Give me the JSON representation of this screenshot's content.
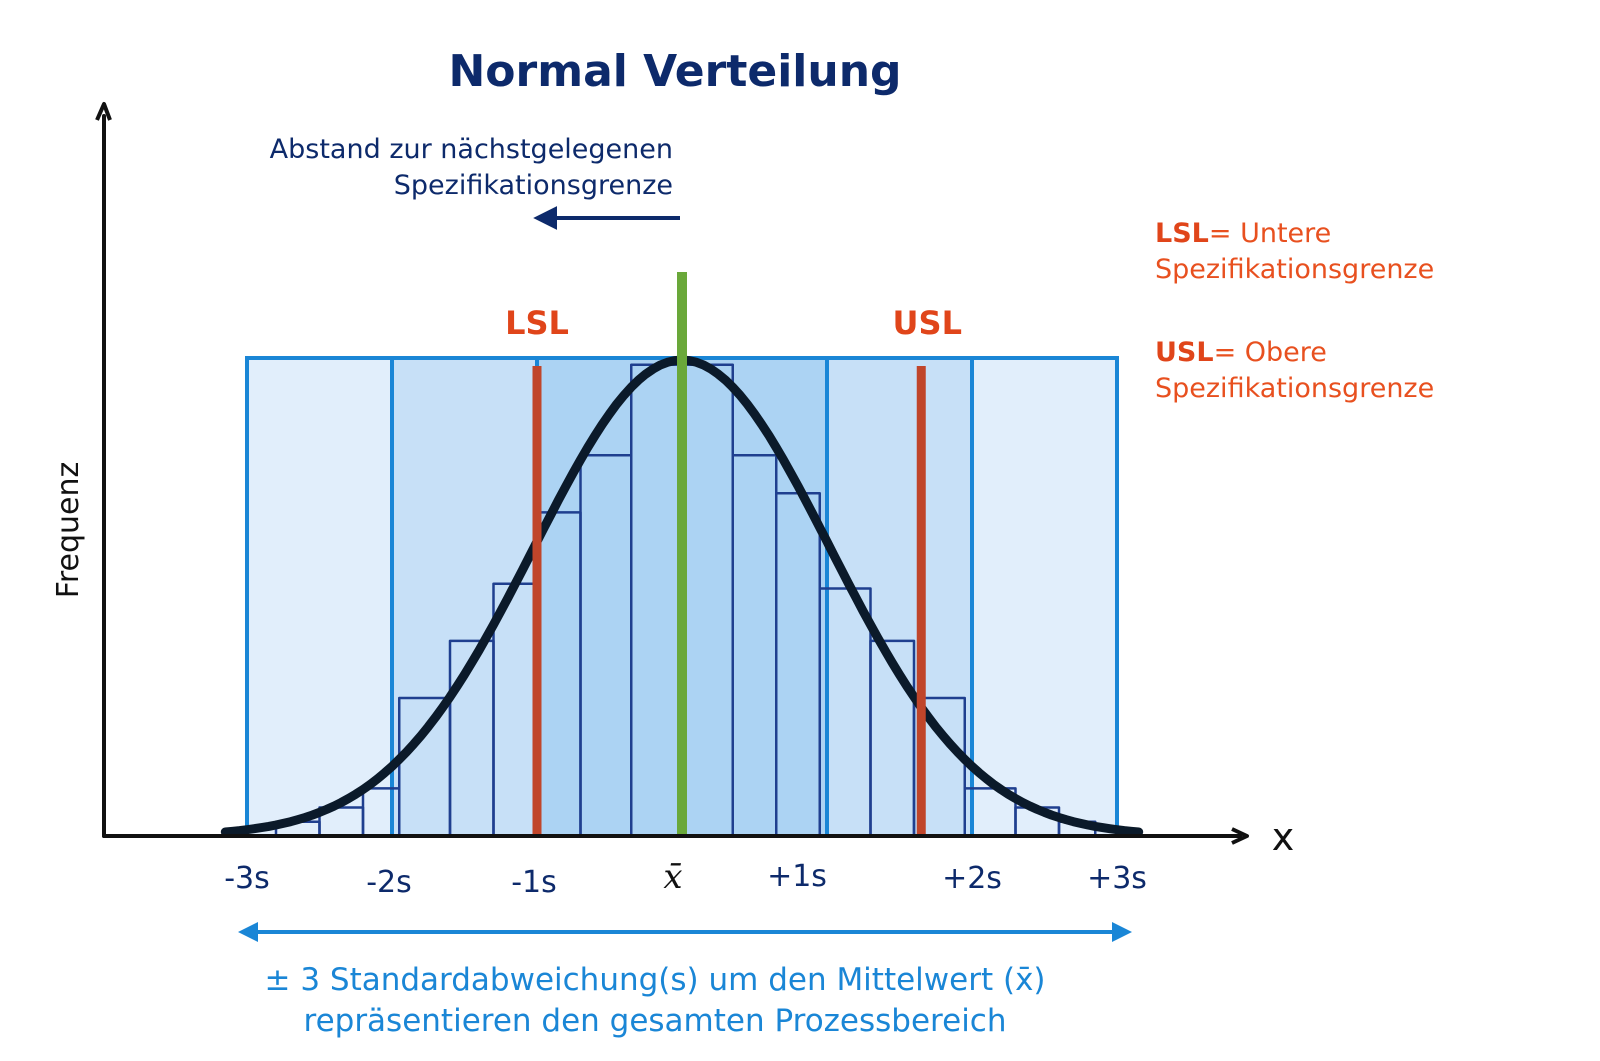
{
  "chart_data": {
    "type": "histogram-with-normal-curve",
    "title": "Normal Verteilung",
    "ylabel": "Frequenz",
    "xlabel": "x",
    "x_ticks": [
      "-3s",
      "-2s",
      "-1s",
      "x̄",
      "+1s",
      "+2s",
      "+3s"
    ],
    "mean_symbol": "x̄",
    "sigma_range": [
      -3,
      3
    ],
    "bins": [
      {
        "x0": -2.8,
        "x1": -2.5,
        "frequency": 0.03
      },
      {
        "x0": -2.5,
        "x1": -2.2,
        "frequency": 0.06
      },
      {
        "x0": -2.2,
        "x1": -1.95,
        "frequency": 0.1
      },
      {
        "x0": -1.95,
        "x1": -1.6,
        "frequency": 0.29
      },
      {
        "x0": -1.6,
        "x1": -1.3,
        "frequency": 0.41
      },
      {
        "x0": -1.3,
        "x1": -1.0,
        "frequency": 0.53
      },
      {
        "x0": -1.0,
        "x1": -0.7,
        "frequency": 0.68
      },
      {
        "x0": -0.7,
        "x1": -0.35,
        "frequency": 0.8
      },
      {
        "x0": -0.35,
        "x1": 0.35,
        "frequency": 0.99
      },
      {
        "x0": 0.35,
        "x1": 0.65,
        "frequency": 0.8
      },
      {
        "x0": 0.65,
        "x1": 0.95,
        "frequency": 0.72
      },
      {
        "x0": 0.95,
        "x1": 1.3,
        "frequency": 0.52
      },
      {
        "x0": 1.3,
        "x1": 1.6,
        "frequency": 0.41
      },
      {
        "x0": 1.6,
        "x1": 1.95,
        "frequency": 0.29
      },
      {
        "x0": 1.95,
        "x1": 2.3,
        "frequency": 0.1
      },
      {
        "x0": 2.3,
        "x1": 2.6,
        "frequency": 0.06
      },
      {
        "x0": 2.6,
        "x1": 2.85,
        "frequency": 0.03
      }
    ],
    "lsl_sigma": -1.0,
    "usl_sigma": 1.65,
    "mean_sigma": 0
  },
  "labels": {
    "lsl": "LSL",
    "usl": "USL",
    "distance_note": [
      "Abstand zur nächstgelegenen",
      "Spezifikationsgrenze"
    ],
    "legend_lsl_key": "LSL",
    "legend_lsl_text": [
      "= Untere",
      "Spezifikationsgrenze"
    ],
    "legend_usl_key": "USL",
    "legend_usl_text": [
      "= Obere",
      "Spezifikationsgrenze"
    ],
    "caption": [
      "± 3 Standardabweichung(s) um den Mittelwert (x̄)",
      "repräsentieren den gesamten Prozessbereich"
    ]
  },
  "colors": {
    "zone_outer": "#e1eefb",
    "zone_middle": "#c7e0f7",
    "zone_inner": "#acd3f3",
    "zone_border": "#1a86d6",
    "bin_stroke": "#1f3f8f",
    "curve": "#0b1a2a",
    "lsl_usl_line": "#c0452a",
    "mean_line": "#6aa83a",
    "arrow_note": "#0d2a6b",
    "caption_arrow": "#1a86d6"
  }
}
